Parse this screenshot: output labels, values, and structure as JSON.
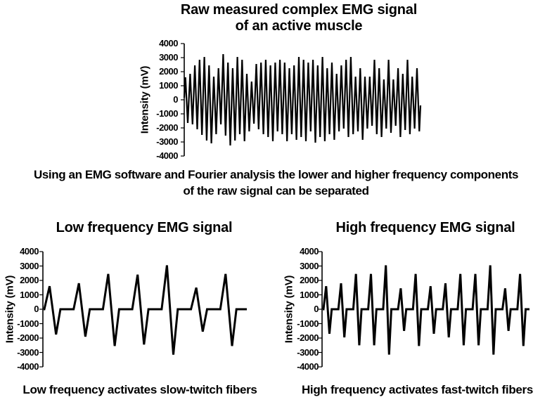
{
  "background": "#ffffff",
  "ink_color": "#000000",
  "top_title": {
    "line1": "Raw measured complex EMG signal",
    "line2": "of an active muscle"
  },
  "middle_text": {
    "line1": "Using an EMG software and Fourier analysis the lower and higher frequency components",
    "line2": "of the raw signal can be separated"
  },
  "chart_data": [
    {
      "id": "raw",
      "type": "line",
      "title": "Raw measured complex EMG signal of an active muscle",
      "ylabel": "Intensity (mV)",
      "units": "mV",
      "ylim": [
        -4000,
        4000
      ],
      "ytick_step": 1000,
      "ytick_labels": [
        "4000",
        "3000",
        "2000",
        "1000",
        "0",
        "-1000",
        "-2000",
        "-3000",
        "-4000"
      ],
      "xaxis_visible": false,
      "grid": false,
      "legend": false,
      "line_color": "#000000",
      "waveform": "zigzag",
      "extrema_mv": [
        1600,
        -1650,
        1850,
        -1750,
        2450,
        -2100,
        2850,
        -2500,
        3050,
        -2900,
        2450,
        -3100,
        1650,
        -2450,
        2250,
        -1750,
        3250,
        -2550,
        2650,
        -3250,
        2250,
        -2900,
        3050,
        -2450,
        2850,
        -2950,
        1850,
        -2250,
        1300,
        -1700,
        2550,
        -2100,
        2650,
        -2450,
        2850,
        -2650,
        2450,
        -2950,
        2650,
        -2250,
        2850,
        -2450,
        2650,
        -2950,
        2250,
        -2450,
        2450,
        -2850,
        3050,
        -2650,
        2850,
        -2950,
        2650,
        -2250,
        2850,
        -3050,
        2450,
        -2650,
        3050,
        -2950,
        2250,
        -2450,
        2650,
        -2850,
        1850,
        -2250,
        2450,
        -2050,
        2850,
        -2650,
        3050,
        -2450,
        1650,
        -2250,
        2250,
        -2850,
        1650,
        -2050,
        1650,
        -1850,
        2850,
        -2450,
        2250,
        -2650,
        1450,
        -2050,
        2850,
        -2350,
        1450,
        -1850,
        2250,
        -2650,
        1850,
        -2150,
        2850,
        -2450,
        1650,
        -2050,
        2250,
        -2250
      ]
    },
    {
      "id": "low",
      "type": "line",
      "title": "Low frequency EMG signal",
      "caption": "Low frequency activates slow-twitch fibers",
      "ylabel": "Intensity (mV)",
      "units": "mV",
      "ylim": [
        -4000,
        4000
      ],
      "ytick_step": 1000,
      "ytick_labels": [
        "4000",
        "3000",
        "2000",
        "1000",
        "0",
        "-1000",
        "-2000",
        "-3000",
        "-4000"
      ],
      "xaxis_visible": false,
      "grid": false,
      "legend": false,
      "line_color": "#000000",
      "waveform": "spikes",
      "spikes_mv": [
        [
          1600,
          -1750
        ],
        [
          1800,
          -1900
        ],
        [
          2450,
          -2550
        ],
        [
          2400,
          -2450
        ],
        [
          3050,
          -3150
        ],
        [
          1500,
          -1550
        ],
        [
          2450,
          -2550
        ]
      ]
    },
    {
      "id": "high",
      "type": "line",
      "title": "High frequency EMG signal",
      "caption": "High frequency activates fast-twitch fibers",
      "ylabel": "Intensity (mV)",
      "units": "mV",
      "ylim": [
        -4000,
        4000
      ],
      "ytick_step": 1000,
      "ytick_labels": [
        "4000",
        "3000",
        "2000",
        "1000",
        "0",
        "-1000",
        "-2000",
        "-3000",
        "-4000"
      ],
      "xaxis_visible": false,
      "grid": false,
      "legend": false,
      "line_color": "#000000",
      "waveform": "spikes",
      "spikes_mv": [
        [
          1600,
          -1700
        ],
        [
          1800,
          -1950
        ],
        [
          2450,
          -2500
        ],
        [
          2450,
          -2500
        ],
        [
          3050,
          -3150
        ],
        [
          1450,
          -1500
        ],
        [
          2450,
          -2550
        ],
        [
          1600,
          -1700
        ],
        [
          1800,
          -1950
        ],
        [
          2450,
          -2500
        ],
        [
          2450,
          -2500
        ],
        [
          3050,
          -3150
        ],
        [
          1450,
          -1500
        ],
        [
          2450,
          -2550
        ]
      ]
    }
  ]
}
